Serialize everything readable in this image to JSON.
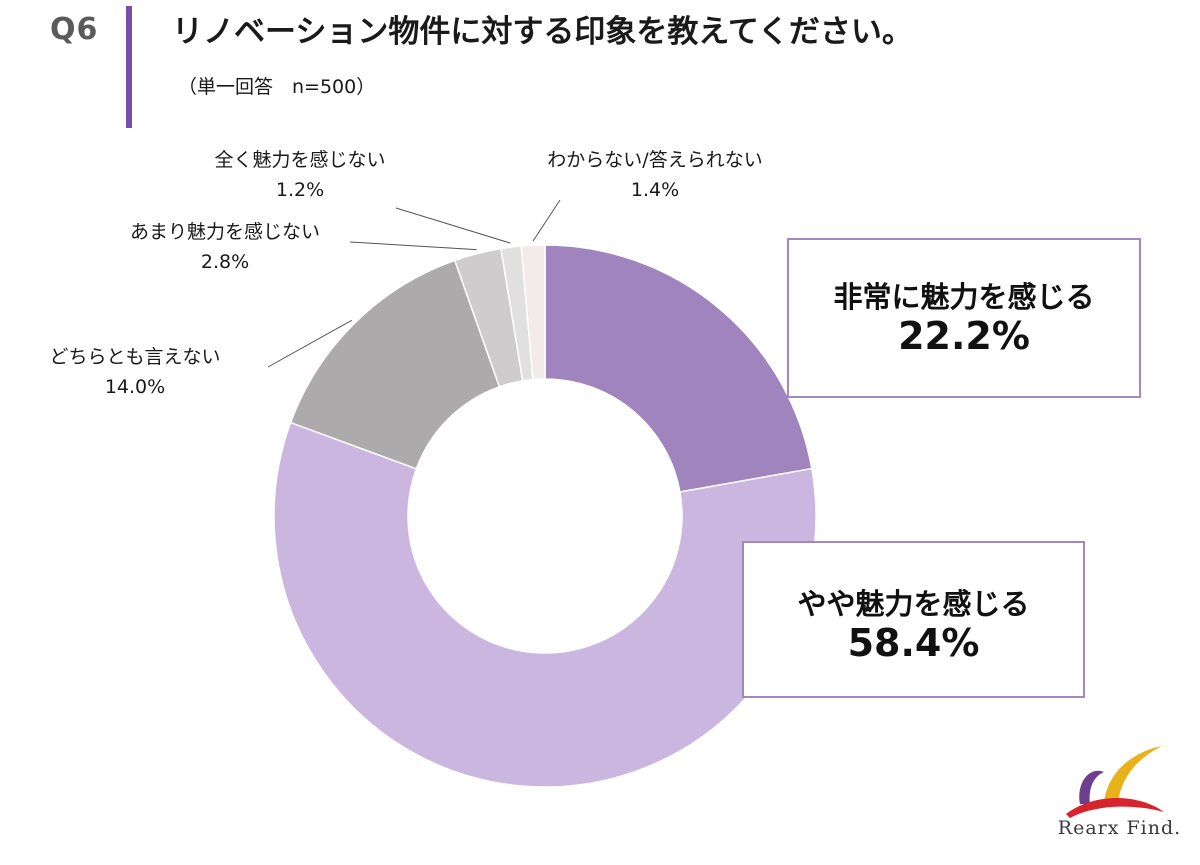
{
  "header": {
    "question_no": "Q6",
    "title": "リノベーション物件に対する印象を教えてください。",
    "subtitle": "（単一回答　n=500）"
  },
  "colors": {
    "accent": "#7a4fa8",
    "callout_border": "#a288c0"
  },
  "chart_data": {
    "type": "pie",
    "donut": true,
    "unit": "%",
    "slices": [
      {
        "label": "非常に魅力を感じる",
        "value": 22.2,
        "value_text": "22.2%",
        "color": "#9f84bd"
      },
      {
        "label": "やや魅力を感じる",
        "value": 58.4,
        "value_text": "58.4%",
        "color": "#cbb6e0"
      },
      {
        "label": "どちらとも言えない",
        "value": 14.0,
        "value_text": "14.0%",
        "color": "#acaaab"
      },
      {
        "label": "あまり魅力を感じない",
        "value": 2.8,
        "value_text": "2.8%",
        "color": "#cecccc"
      },
      {
        "label": "全く魅力を感じない",
        "value": 1.2,
        "value_text": "1.2%",
        "color": "#e0e0e0"
      },
      {
        "label": "わからない/答えられない",
        "value": 1.4,
        "value_text": "1.4%",
        "color": "#f3eaea"
      }
    ]
  },
  "logo": {
    "text": "Rearx Find."
  }
}
